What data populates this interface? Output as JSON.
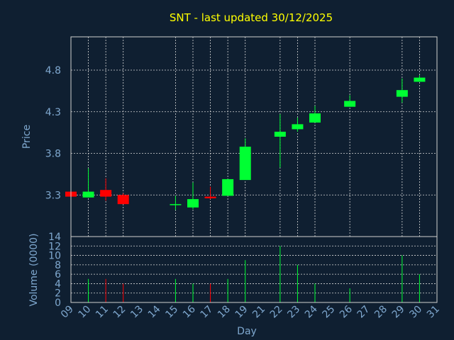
{
  "chart_data": {
    "type": "candlestick",
    "title": "SNT - last updated 30/12/2025",
    "xlabel": "Day",
    "price_panel": {
      "ylabel": "Price",
      "yticks": [
        "3.3",
        "3.8",
        "4.3",
        "4.8"
      ],
      "ylim": [
        2.8,
        5.2
      ]
    },
    "volume_panel": {
      "ylabel": "Volume (0000)",
      "yticks": [
        "0",
        "2",
        "4",
        "6",
        "8",
        "10",
        "12",
        "14"
      ],
      "ylim": [
        0,
        14
      ]
    },
    "x_ticks": [
      "09",
      "10",
      "11",
      "12",
      "13",
      "14",
      "15",
      "16",
      "17",
      "18",
      "19",
      "21",
      "22",
      "23",
      "24",
      "25",
      "26",
      "27",
      "28",
      "29",
      "30",
      "31"
    ],
    "colors": {
      "up": "#00ff33",
      "down": "#ff0000",
      "background": "#0f1f31",
      "text": "#7fa8cf",
      "title": "#ffff00"
    },
    "candles": [
      {
        "day": "09",
        "open": 3.34,
        "high": 3.34,
        "low": 3.28,
        "close": 3.28,
        "volume": 0
      },
      {
        "day": "10",
        "open": 3.27,
        "high": 3.62,
        "low": 3.27,
        "close": 3.34,
        "volume": 5
      },
      {
        "day": "11",
        "open": 3.36,
        "high": 3.5,
        "low": 3.23,
        "close": 3.28,
        "volume": 5
      },
      {
        "day": "12",
        "open": 3.3,
        "high": 3.32,
        "low": 3.19,
        "close": 3.19,
        "volume": 4
      },
      {
        "day": "15",
        "open": 3.18,
        "high": 3.29,
        "low": 3.12,
        "close": 3.19,
        "volume": 5
      },
      {
        "day": "16",
        "open": 3.15,
        "high": 3.45,
        "low": 3.13,
        "close": 3.25,
        "volume": 4
      },
      {
        "day": "17",
        "open": 3.28,
        "high": 3.4,
        "low": 3.25,
        "close": 3.26,
        "volume": 4
      },
      {
        "day": "18",
        "open": 3.29,
        "high": 3.49,
        "low": 3.29,
        "close": 3.49,
        "volume": 5
      },
      {
        "day": "19",
        "open": 3.48,
        "high": 3.98,
        "low": 3.48,
        "close": 3.88,
        "volume": 9
      },
      {
        "day": "22",
        "open": 4.0,
        "high": 4.27,
        "low": 3.63,
        "close": 4.06,
        "volume": 12
      },
      {
        "day": "23",
        "open": 4.09,
        "high": 4.23,
        "low": 4.06,
        "close": 4.15,
        "volume": 8
      },
      {
        "day": "24",
        "open": 4.17,
        "high": 4.37,
        "low": 4.17,
        "close": 4.28,
        "volume": 4
      },
      {
        "day": "26",
        "open": 4.36,
        "high": 4.5,
        "low": 4.36,
        "close": 4.43,
        "volume": 3
      },
      {
        "day": "29",
        "open": 4.48,
        "high": 4.7,
        "low": 4.41,
        "close": 4.56,
        "volume": 10
      },
      {
        "day": "30",
        "open": 4.66,
        "high": 4.74,
        "low": 4.66,
        "close": 4.71,
        "volume": 6
      }
    ]
  }
}
